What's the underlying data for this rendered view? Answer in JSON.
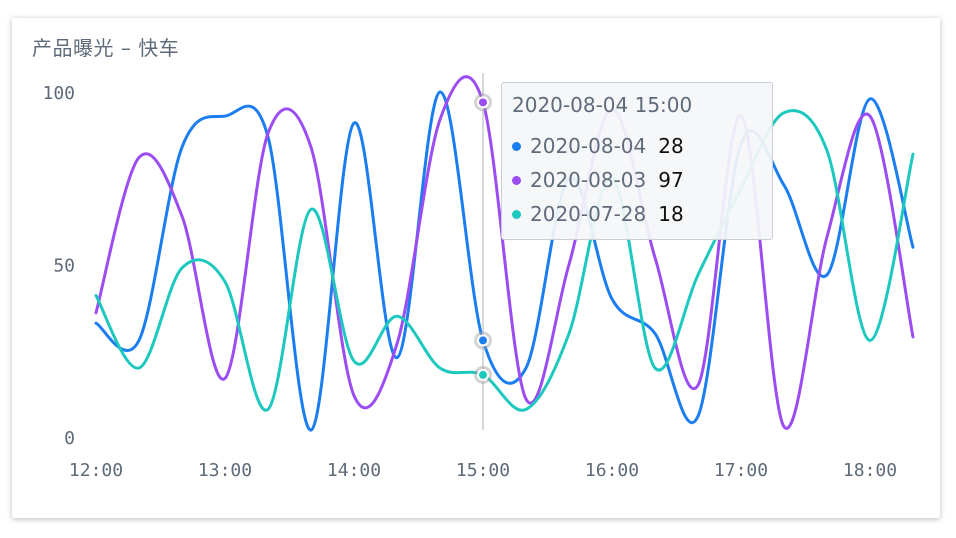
{
  "chart_data": {
    "type": "line",
    "title": "产品曝光 – 快车",
    "xlabel": "",
    "ylabel": "",
    "ylim": [
      0,
      100
    ],
    "y_ticks": [
      "0",
      "50",
      "100"
    ],
    "x_ticks": [
      "12:00",
      "13:00",
      "14:00",
      "15:00",
      "16:00",
      "17:00",
      "18:00"
    ],
    "x": [
      "12:00",
      "12:20",
      "12:40",
      "13:00",
      "13:20",
      "13:40",
      "14:00",
      "14:20",
      "14:40",
      "15:00",
      "15:20",
      "15:40",
      "16:00",
      "16:20",
      "16:40",
      "17:00",
      "17:20",
      "17:40",
      "18:00",
      "18:20"
    ],
    "curve": "smooth",
    "grid": false,
    "legend": "none",
    "series": [
      {
        "name": "2020-08-04",
        "color": "#1a7ef0",
        "values": [
          33,
          28,
          84,
          93,
          87,
          2,
          91,
          23,
          100,
          28,
          20,
          75,
          40,
          30,
          6,
          85,
          73,
          47,
          98,
          55
        ]
      },
      {
        "name": "2020-08-03",
        "color": "#9b4cf2",
        "values": [
          36,
          81,
          64,
          17,
          88,
          84,
          12,
          27,
          92,
          97,
          11,
          50,
          95,
          52,
          15,
          93,
          3,
          58,
          93,
          29
        ]
      },
      {
        "name": "2020-07-28",
        "color": "#1dc8be",
        "values": [
          41,
          20,
          49,
          45,
          8,
          66,
          22,
          35,
          20,
          18,
          8,
          30,
          75,
          20,
          47,
          72,
          94,
          83,
          28,
          82
        ]
      }
    ],
    "tooltip": {
      "title": "2020-08-04 15:00",
      "x_index": 9,
      "items": [
        {
          "name": "2020-08-04",
          "value": "28",
          "color": "#1a7ef0"
        },
        {
          "name": "2020-08-03",
          "value": "97",
          "color": "#9b4cf2"
        },
        {
          "name": "2020-07-28",
          "value": "18",
          "color": "#1dc8be"
        }
      ]
    }
  }
}
